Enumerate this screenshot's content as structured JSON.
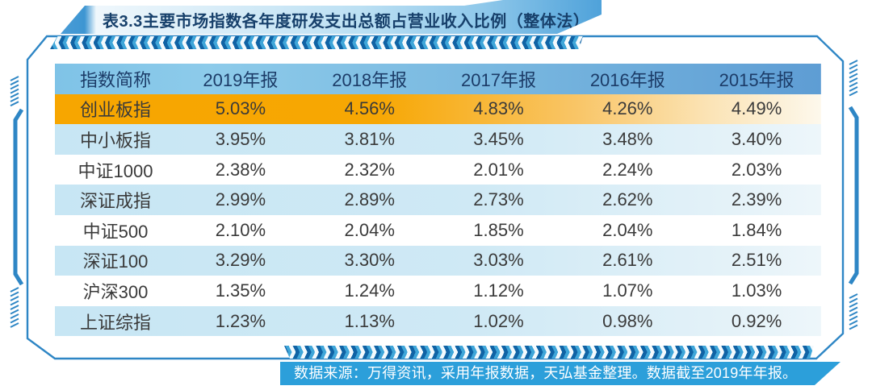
{
  "title": "表3.3主要市场指数各年度研发支出总额占营业收入比例（整体法）",
  "table": {
    "columns": [
      "指数简称",
      "2019年报",
      "2018年报",
      "2017年报",
      "2016年报",
      "2015年报"
    ],
    "rows": [
      {
        "name": "创业板指",
        "values": [
          "5.03%",
          "4.56%",
          "4.83%",
          "4.26%",
          "4.49%"
        ],
        "highlight": true
      },
      {
        "name": "中小板指",
        "values": [
          "3.95%",
          "3.81%",
          "3.45%",
          "3.48%",
          "3.40%"
        ]
      },
      {
        "name": "中证1000",
        "values": [
          "2.38%",
          "2.32%",
          "2.01%",
          "2.24%",
          "2.03%"
        ]
      },
      {
        "name": "深证成指",
        "values": [
          "2.99%",
          "2.89%",
          "2.73%",
          "2.62%",
          "2.39%"
        ]
      },
      {
        "name": "中证500",
        "values": [
          "2.10%",
          "2.04%",
          "1.85%",
          "2.04%",
          "1.84%"
        ]
      },
      {
        "name": "深证100",
        "values": [
          "3.29%",
          "3.30%",
          "3.03%",
          "2.61%",
          "2.51%"
        ]
      },
      {
        "name": "沪深300",
        "values": [
          "1.35%",
          "1.24%",
          "1.12%",
          "1.07%",
          "1.03%"
        ]
      },
      {
        "name": "上证综指",
        "values": [
          "1.23%",
          "1.13%",
          "1.02%",
          "0.98%",
          "0.92%"
        ]
      }
    ]
  },
  "footer": {
    "source_note": "数据来源：万得资讯，采用年报数据，天弘基金整理。数据截至2019年年报。"
  },
  "colors": {
    "accent_blue": "#2E86C5",
    "header_gradient_left": "#7FC3E7",
    "header_gradient_right": "#5E9DD4",
    "highlight_orange": "#F7A600",
    "alt_row_blue": "#C7E6F4",
    "footer_bar_blue": "#2C9FDA",
    "title_text": "#17406B",
    "body_text": "#3A3A3A"
  },
  "chart_data": {
    "type": "table",
    "title": "表3.3主要市场指数各年度研发支出总额占营业收入比例（整体法）",
    "categories": [
      "2019年报",
      "2018年报",
      "2017年报",
      "2016年报",
      "2015年报"
    ],
    "series": [
      {
        "name": "创业板指",
        "values": [
          5.03,
          4.56,
          4.83,
          4.26,
          4.49
        ]
      },
      {
        "name": "中小板指",
        "values": [
          3.95,
          3.81,
          3.45,
          3.48,
          3.4
        ]
      },
      {
        "name": "中证1000",
        "values": [
          2.38,
          2.32,
          2.01,
          2.24,
          2.03
        ]
      },
      {
        "name": "深证成指",
        "values": [
          2.99,
          2.89,
          2.73,
          2.62,
          2.39
        ]
      },
      {
        "name": "中证500",
        "values": [
          2.1,
          2.04,
          1.85,
          2.04,
          1.84
        ]
      },
      {
        "name": "深证100",
        "values": [
          3.29,
          3.3,
          3.03,
          2.61,
          2.51
        ]
      },
      {
        "name": "沪深300",
        "values": [
          1.35,
          1.24,
          1.12,
          1.07,
          1.03
        ]
      },
      {
        "name": "上证综指",
        "values": [
          1.23,
          1.13,
          1.02,
          0.98,
          0.92
        ]
      }
    ],
    "unit": "%",
    "source": "数据来源：万得资讯，采用年报数据，天弘基金整理。数据截至2019年年报。"
  }
}
